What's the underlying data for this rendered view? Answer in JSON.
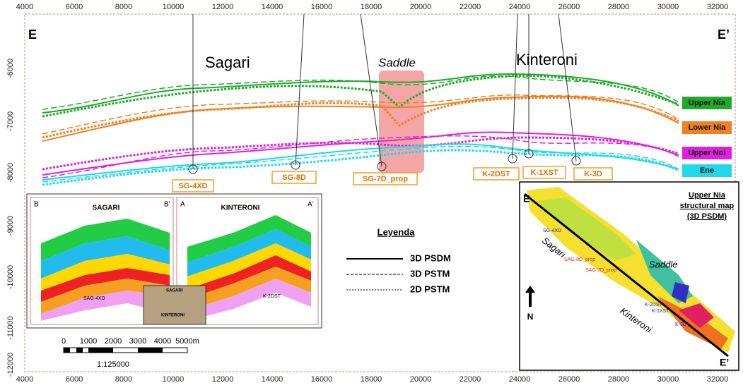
{
  "axes": {
    "x_ticks": [
      "4000",
      "6000",
      "8000",
      "10000",
      "12000",
      "14000",
      "16000",
      "18000",
      "20000",
      "22000",
      "24000",
      "26000",
      "28000",
      "30000",
      "32000"
    ],
    "y_ticks": [
      "-6000",
      "-7000",
      "-8000",
      "-9000",
      "-10000",
      "-11000",
      "-12000"
    ]
  },
  "section": {
    "left_label": "E",
    "right_label": "E’",
    "fields": [
      "Sagari",
      "Saddle",
      "Kinteroni"
    ]
  },
  "horizons": [
    "Upper Nia",
    "Lower Nia",
    "Upper Noi",
    "Ene"
  ],
  "wells": [
    "SG-4XD",
    "SG-8D",
    "SG-7D_prop",
    "K-2DST",
    "K-1XST",
    "K-3D"
  ],
  "legend": {
    "title": "Leyenda",
    "items": [
      "3D PSDM",
      "3D PSTM",
      "2D PSTM"
    ]
  },
  "scale_bar": {
    "ticks": [
      "0",
      "1000",
      "2000",
      "3000",
      "4000",
      "5000m"
    ],
    "ratio": "1:125000"
  },
  "inset_sagari": {
    "left": "B",
    "right": "B’",
    "title": "SAGARI",
    "well": "SAG-4XD"
  },
  "inset_kinteroni": {
    "left": "A",
    "right": "A’",
    "title": "KINTERONI",
    "well": "K-2DST"
  },
  "inset_3d": {
    "labels": [
      "SAGARI",
      "KINTERONI"
    ]
  },
  "map": {
    "title_lines": [
      "Upper Nia",
      "structural map",
      "(3D PSDM)"
    ],
    "north": "N",
    "left": "E",
    "right": "E’",
    "labels": [
      "Sagari",
      "Saddle",
      "Kinteroni"
    ],
    "wells": [
      "SG-4XD",
      "SAG-8D_prop",
      "SAG-7D_prop",
      "K-2DST",
      "K-1XST",
      "K-3D"
    ]
  }
}
